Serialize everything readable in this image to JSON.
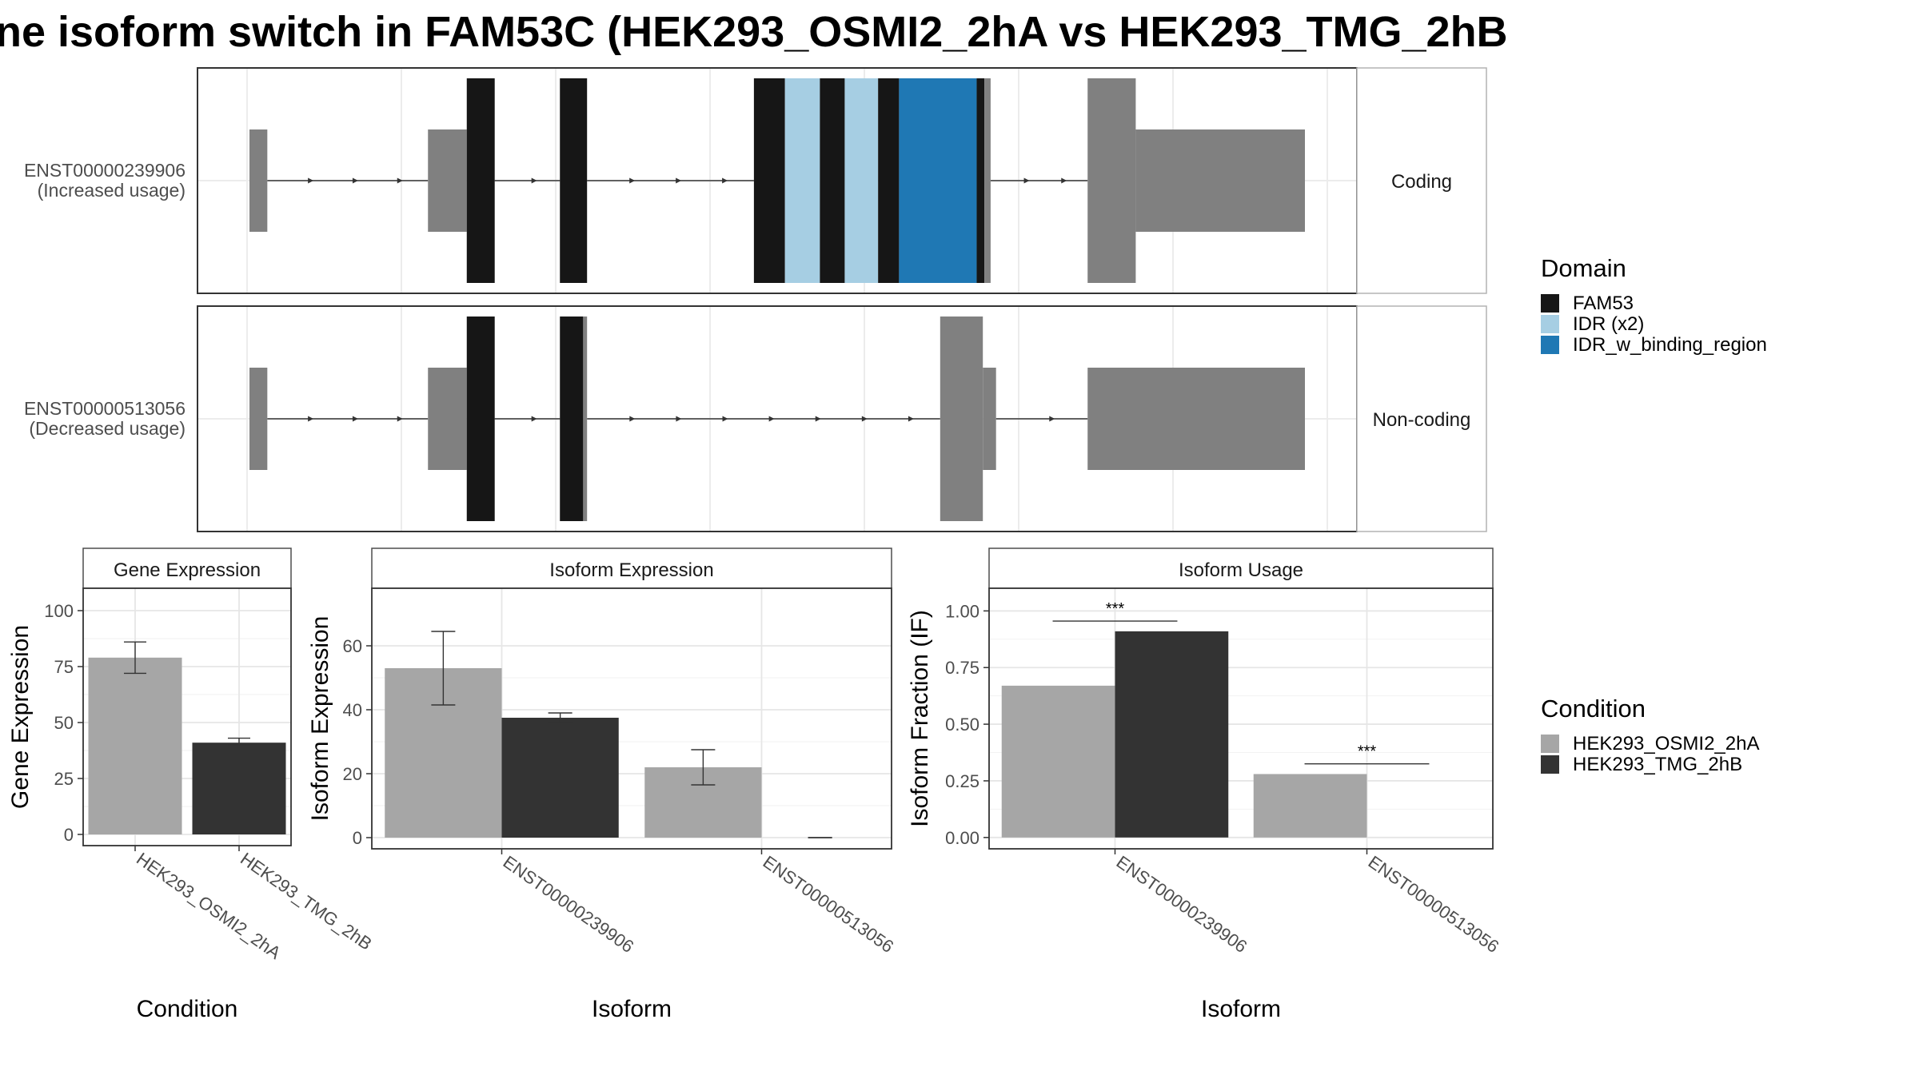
{
  "title": "ne isoform switch in FAM53C (HEK293_OSMI2_2hA vs HEK293_TMG_2hB",
  "colors": {
    "FAM53": "#161616",
    "IDR (x2)": "#a6cee3",
    "IDR_w_binding_region": "#1f78b4",
    "utr": "#808080",
    "HEK293_OSMI2_2hA": "#a6a6a6",
    "HEK293_TMG_2hB": "#333333"
  },
  "isoform_panel": {
    "isoforms": [
      {
        "id": "ENST00000239906",
        "label_line1": "ENST00000239906",
        "label_line2": "(Increased usage)",
        "strip": "Coding",
        "segments": [
          {
            "x0": 0.0,
            "x1": 0.23,
            "kind": "utr"
          },
          {
            "x0": 2.3,
            "x1": 2.8,
            "kind": "utr"
          },
          {
            "x0": 2.8,
            "x1": 3.16,
            "kind": "FAM53"
          },
          {
            "x0": 4.0,
            "x1": 4.35,
            "kind": "FAM53"
          },
          {
            "x0": 6.5,
            "x1": 6.9,
            "kind": "FAM53"
          },
          {
            "x0": 6.9,
            "x1": 7.35,
            "kind": "IDR (x2)"
          },
          {
            "x0": 7.35,
            "x1": 7.67,
            "kind": "FAM53"
          },
          {
            "x0": 7.67,
            "x1": 8.1,
            "kind": "IDR (x2)"
          },
          {
            "x0": 8.1,
            "x1": 8.37,
            "kind": "FAM53"
          },
          {
            "x0": 8.37,
            "x1": 9.37,
            "kind": "IDR_w_binding_region"
          },
          {
            "x0": 9.37,
            "x1": 9.47,
            "kind": "FAM53"
          },
          {
            "x0": 9.47,
            "x1": 9.55,
            "kind": "utr_thin"
          },
          {
            "x0": 10.8,
            "x1": 11.42,
            "kind": "FAM53_utr_tall"
          },
          {
            "x0": 11.42,
            "x1": 13.6,
            "kind": "utr"
          }
        ],
        "introns": [
          [
            0.23,
            2.3
          ],
          [
            3.16,
            4.0
          ],
          [
            4.35,
            6.5
          ],
          [
            9.55,
            10.8
          ]
        ]
      },
      {
        "id": "ENST00000513056",
        "label_line1": "ENST00000513056",
        "label_line2": "(Decreased usage)",
        "strip": "Non-coding",
        "segments": [
          {
            "x0": 0.0,
            "x1": 0.23,
            "kind": "utr"
          },
          {
            "x0": 2.3,
            "x1": 2.8,
            "kind": "utr"
          },
          {
            "x0": 2.8,
            "x1": 3.16,
            "kind": "FAM53"
          },
          {
            "x0": 4.0,
            "x1": 4.3,
            "kind": "FAM53"
          },
          {
            "x0": 4.3,
            "x1": 4.35,
            "kind": "utr_thin"
          },
          {
            "x0": 8.9,
            "x1": 9.45,
            "kind": "utr_tall"
          },
          {
            "x0": 9.45,
            "x1": 9.62,
            "kind": "utr"
          },
          {
            "x0": 10.8,
            "x1": 13.6,
            "kind": "utr"
          }
        ],
        "introns": [
          [
            0.23,
            2.3
          ],
          [
            3.16,
            4.0
          ],
          [
            4.35,
            8.9
          ],
          [
            9.62,
            10.8
          ]
        ]
      }
    ]
  },
  "domain_legend": {
    "title": "Domain",
    "items": [
      {
        "label": "FAM53",
        "color": "#161616"
      },
      {
        "label": "IDR (x2)",
        "color": "#a6cee3"
      },
      {
        "label": "IDR_w_binding_region",
        "color": "#1f78b4"
      }
    ]
  },
  "condition_legend": {
    "title": "Condition",
    "items": [
      {
        "label": "HEK293_OSMI2_2hA",
        "color": "#a6a6a6"
      },
      {
        "label": "HEK293_TMG_2hB",
        "color": "#333333"
      }
    ]
  },
  "chart_data": [
    {
      "type": "bar",
      "title": "Gene Expression",
      "xlabel": "Condition",
      "ylabel": "Gene Expression",
      "categories": [
        "HEK293_OSMI2_2hA",
        "HEK293_TMG_2hB"
      ],
      "values": [
        79,
        41
      ],
      "error_low": [
        72,
        40
      ],
      "error_high": [
        86,
        43
      ],
      "ylim": [
        -5,
        110
      ],
      "yticks": [
        0,
        25,
        50,
        75,
        100
      ],
      "grid": true
    },
    {
      "type": "bar",
      "title": "Isoform Expression",
      "xlabel": "Isoform",
      "ylabel": "Isoform Expression",
      "categories": [
        "ENST00000239906",
        "ENST00000513056"
      ],
      "series": [
        {
          "name": "HEK293_OSMI2_2hA",
          "values": [
            53,
            22
          ],
          "error_low": [
            41.5,
            16.5
          ],
          "error_high": [
            64.5,
            27.5
          ]
        },
        {
          "name": "HEK293_TMG_2hB",
          "values": [
            37.5,
            0
          ],
          "error_low": [
            36,
            0
          ],
          "error_high": [
            39,
            0
          ]
        }
      ],
      "ylim": [
        -3.5,
        78
      ],
      "yticks": [
        0,
        20,
        40,
        60
      ],
      "grid": true
    },
    {
      "type": "bar",
      "title": "Isoform Usage",
      "xlabel": "Isoform",
      "ylabel": "Isoform Fraction (IF)",
      "categories": [
        "ENST00000239906",
        "ENST00000513056"
      ],
      "series": [
        {
          "name": "HEK293_OSMI2_2hA",
          "values": [
            0.67,
            0.28
          ]
        },
        {
          "name": "HEK293_TMG_2hB",
          "values": [
            0.91,
            0.0
          ]
        }
      ],
      "significance": [
        "***",
        "***"
      ],
      "ylim": [
        -0.05,
        1.1
      ],
      "yticks": [
        0.0,
        0.25,
        0.5,
        0.75,
        1.0
      ],
      "ytick_labels": [
        "0.00",
        "0.25",
        "0.50",
        "0.75",
        "1.00"
      ],
      "grid": true
    }
  ]
}
